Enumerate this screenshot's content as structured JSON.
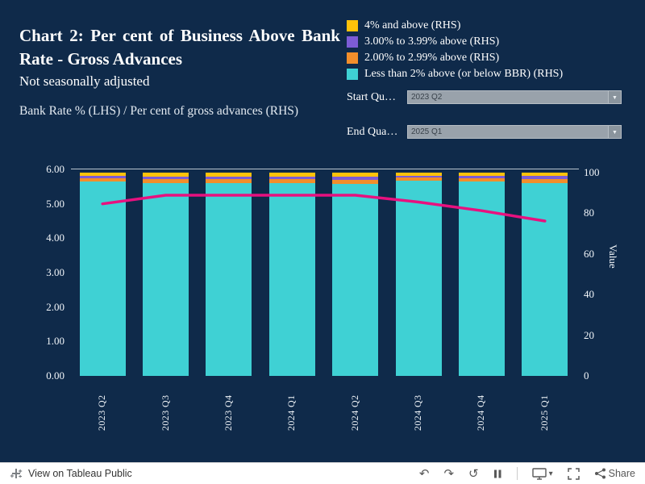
{
  "app": {
    "background": "#0f2a4a"
  },
  "header": {
    "title": "Chart 2: Per cent of Business Above Bank Rate - Gross Advances",
    "subtitle": "Not seasonally adjusted",
    "caption": "Bank Rate % (LHS) / Per cent of gross advances (RHS)"
  },
  "legend": {
    "items": [
      {
        "label": "4% and above (RHS)",
        "color": "#ffc20a"
      },
      {
        "label": "3.00% to 3.99% above (RHS)",
        "color": "#7c5cd6"
      },
      {
        "label": "2.00% to 2.99% above (RHS)",
        "color": "#f28e2b"
      },
      {
        "label": "Less than 2% above (or below BBR) (RHS)",
        "color": "#3fd1d4"
      }
    ]
  },
  "filters": {
    "dropdown_arrow": "▼",
    "start": {
      "label": "Start Qu…",
      "value": "2023 Q2"
    },
    "end": {
      "label": "End Qua…",
      "value": "2025 Q1"
    }
  },
  "chart_data": {
    "type": "bar",
    "stacked": true,
    "title": "Chart 2: Per cent of Business Above Bank Rate - Gross Advances",
    "categories": [
      "2023 Q2",
      "2023 Q3",
      "2023 Q4",
      "2024 Q1",
      "2024 Q2",
      "2024 Q3",
      "2024 Q4",
      "2025 Q1"
    ],
    "series": [
      {
        "name": "Less than 2% above (or below BBR) (RHS)",
        "color": "#3fd1d4",
        "axis": "right",
        "values": [
          95.5,
          95.0,
          95.0,
          95.0,
          94.5,
          96.0,
          95.5,
          95.0
        ]
      },
      {
        "name": "2.00% to 2.99% above (RHS)",
        "color": "#f28e2b",
        "axis": "right",
        "values": [
          1.8,
          2.0,
          2.0,
          2.0,
          2.2,
          1.6,
          1.8,
          2.0
        ]
      },
      {
        "name": "3.00% to 3.99% above (RHS)",
        "color": "#7c5cd6",
        "axis": "right",
        "values": [
          1.2,
          1.2,
          1.2,
          1.2,
          1.5,
          1.0,
          1.2,
          1.5
        ]
      },
      {
        "name": "4% and above (RHS)",
        "color": "#ffc20a",
        "axis": "right",
        "values": [
          1.5,
          1.8,
          1.8,
          1.8,
          1.8,
          1.4,
          1.5,
          1.5
        ]
      }
    ],
    "line_series": {
      "name": "Bank Rate % (LHS)",
      "color": "#e8117f",
      "values": [
        5.0,
        5.25,
        5.25,
        5.25,
        5.25,
        5.05,
        4.8,
        4.5
      ]
    },
    "left_axis": {
      "min": 0,
      "max": 6,
      "ticks": [
        "0.00",
        "1.00",
        "2.00",
        "3.00",
        "4.00",
        "5.00",
        "6.00"
      ]
    },
    "right_axis": {
      "min": 0,
      "max": 100,
      "ticks": [
        0,
        20,
        40,
        60,
        80,
        100
      ],
      "label": "Value"
    },
    "grid": false,
    "legend_position": "top-right"
  },
  "footer": {
    "view_label": "View on Tableau Public",
    "share_label": "Share",
    "icons": {
      "undo": "↶",
      "redo": "↷",
      "reset": "↺",
      "caret": "▾"
    }
  }
}
